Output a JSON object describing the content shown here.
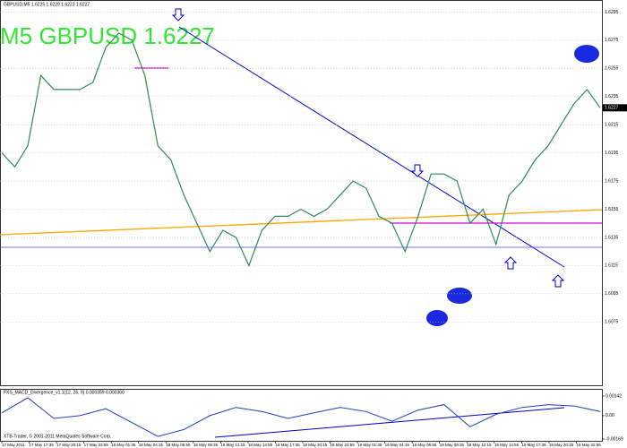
{
  "header": "GBPUSD,M5  1.6225 1.6229 1.6223 1.6227",
  "watermark": "M5 GBPUSD 1.6227",
  "chart_data": {
    "type": "line",
    "color": "#2e8b57",
    "values": [
      1.6195,
      1.6185,
      1.62,
      1.625,
      1.624,
      1.624,
      1.624,
      1.6245,
      1.627,
      1.628,
      1.6275,
      1.625,
      1.62,
      1.619,
      1.6165,
      1.6145,
      1.6125,
      1.614,
      1.6135,
      1.6115,
      1.614,
      1.615,
      1.615,
      1.6155,
      1.615,
      1.6155,
      1.6165,
      1.6175,
      1.617,
      1.615,
      1.6145,
      1.6125,
      1.615,
      1.618,
      1.618,
      1.6175,
      1.6145,
      1.6155,
      1.613,
      1.6165,
      1.6175,
      1.619,
      1.62,
      1.6215,
      1.623,
      1.624,
      1.6227
    ],
    "ylim": [
      1.603,
      1.6301
    ],
    "yticks": [
      1.6295,
      1.6275,
      1.6255,
      1.6235,
      1.6215,
      1.6195,
      1.6175,
      1.6155,
      1.6135,
      1.6115,
      1.6095,
      1.6075
    ],
    "last_price": 1.6227,
    "grid": true
  },
  "indicator": {
    "title": "FXS_MACD_Divergence_v1.1(12, 26, 9) 0.000359 0.000360",
    "color": "#1f3fbf",
    "values": [
      0.0002,
      0.0013,
      -0.0002,
      0.0,
      0.0005,
      -0.0005,
      -0.0015,
      -0.001,
      0.0,
      0.0006,
      0.0003,
      -0.0002,
      0.0002,
      0.0006,
      0.0003,
      -0.0004,
      0.0004,
      0.0008,
      -0.0008,
      0.0001,
      0.0006,
      0.0008,
      0.0007,
      0.0003
    ],
    "ylim": [
      -0.00169,
      0.00142
    ],
    "yticks": [
      0.00142,
      {
        "value": 0,
        "label": "0.00"
      },
      -0.00169
    ]
  },
  "time_labels": [
    "17 May 2011",
    "17 May 17:35",
    "17 May 20:15",
    "17 May 22:55",
    "18 May 01:35",
    "18 May 04:15",
    "18 May 06:55",
    "18 May 09:35",
    "18 May 12:15",
    "18 May 14:55",
    "18 May 17:35",
    "18 May 20:15",
    "18 May 22:55",
    "19 May 01:35",
    "19 May 04:15",
    "19 May 06:55",
    "19 May 09:35",
    "19 May 12:15",
    "19 May 14:55",
    "19 May 17:35",
    "19 May 20:15",
    "19 May 22:55"
  ],
  "copyright": "XTB-Trader, © 2001-2011 MetaQuotes Software Corp."
}
